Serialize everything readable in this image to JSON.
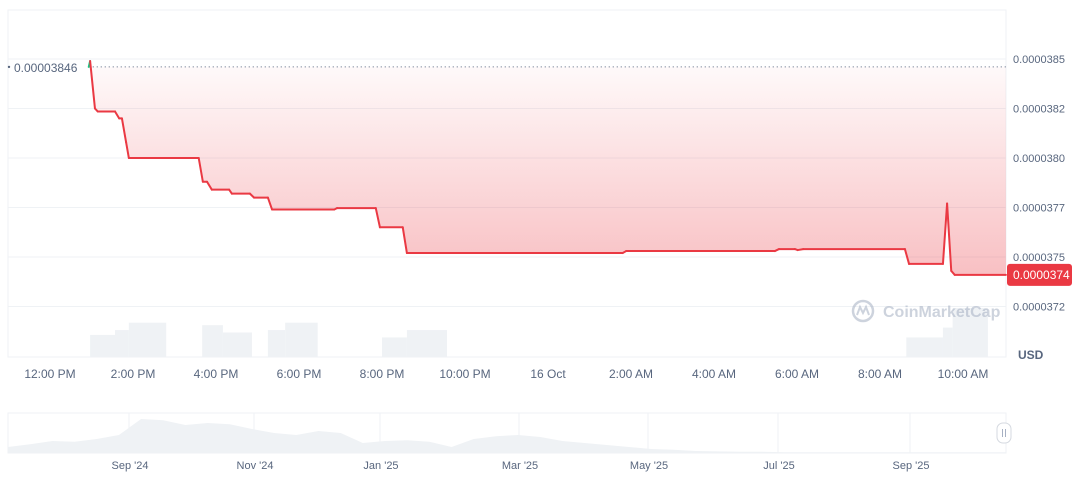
{
  "chart_data": {
    "type": "line",
    "currency_label": "USD",
    "watermark": "CoinMarketCap",
    "colors": {
      "up": "#16c784",
      "down": "#ea3943",
      "grid": "#eff2f5",
      "text": "#58667e",
      "volume": "#eff2f5"
    },
    "grid": true,
    "start_price_label": "0.00003846",
    "start_price": 3.846e-05,
    "last_price_label": "0.0000374",
    "last_price": 3.741e-05,
    "y_ticks": [
      {
        "value": 3.85e-05,
        "label": "0.0000385"
      },
      {
        "value": 3.825e-05,
        "label": "0.0000382"
      },
      {
        "value": 3.8e-05,
        "label": "0.0000380"
      },
      {
        "value": 3.775e-05,
        "label": "0.0000377"
      },
      {
        "value": 3.75e-05,
        "label": "0.0000375"
      },
      {
        "value": 3.725e-05,
        "label": "0.0000372"
      }
    ],
    "x_ticks": [
      {
        "time": "15 12:00",
        "label": "12:00 PM"
      },
      {
        "time": "15 14:00",
        "label": "2:00 PM"
      },
      {
        "time": "15 16:00",
        "label": "4:00 PM"
      },
      {
        "time": "15 18:00",
        "label": "6:00 PM"
      },
      {
        "time": "15 20:00",
        "label": "8:00 PM"
      },
      {
        "time": "15 22:00",
        "label": "10:00 PM"
      },
      {
        "time": "16 00:00",
        "label": "16 Oct"
      },
      {
        "time": "16 02:00",
        "label": "2:00 AM"
      },
      {
        "time": "16 04:00",
        "label": "4:00 AM"
      },
      {
        "time": "16 06:00",
        "label": "6:00 AM"
      },
      {
        "time": "16 08:00",
        "label": "8:00 AM"
      },
      {
        "time": "16 10:00",
        "label": "10:00 AM"
      }
    ],
    "series": [
      {
        "points": [
          [
            "15 12:56",
            3.846e-05
          ],
          [
            "15 12:58",
            3.849e-05
          ],
          [
            "15 13:05",
            3.825e-05
          ],
          [
            "15 13:09",
            3.8235e-05
          ],
          [
            "15 13:34",
            3.8235e-05
          ],
          [
            "15 13:40",
            3.82e-05
          ],
          [
            "15 13:44",
            3.82e-05
          ],
          [
            "15 13:50",
            3.808e-05
          ],
          [
            "15 13:54",
            3.8e-05
          ],
          [
            "15 15:35",
            3.8e-05
          ],
          [
            "15 15:41",
            3.788e-05
          ],
          [
            "15 15:47",
            3.788e-05
          ],
          [
            "15 15:54",
            3.784e-05
          ],
          [
            "15 16:19",
            3.784e-05
          ],
          [
            "15 16:23",
            3.782e-05
          ],
          [
            "15 16:49",
            3.782e-05
          ],
          [
            "15 16:55",
            3.78e-05
          ],
          [
            "15 17:15",
            3.78e-05
          ],
          [
            "15 17:21",
            3.774e-05
          ],
          [
            "15 18:51",
            3.774e-05
          ],
          [
            "15 18:55",
            3.7747e-05
          ],
          [
            "15 19:51",
            3.7747e-05
          ],
          [
            "15 19:57",
            3.765e-05
          ],
          [
            "15 20:30",
            3.765e-05
          ],
          [
            "15 20:36",
            3.752e-05
          ],
          [
            "16 01:48",
            3.752e-05
          ],
          [
            "16 01:53",
            3.753e-05
          ],
          [
            "16 05:28",
            3.753e-05
          ],
          [
            "16 05:34",
            3.754e-05
          ],
          [
            "16 05:57",
            3.754e-05
          ],
          [
            "16 06:01",
            3.7535e-05
          ],
          [
            "16 06:09",
            3.754e-05
          ],
          [
            "16 08:36",
            3.754e-05
          ],
          [
            "16 08:42",
            3.7465e-05
          ],
          [
            "16 09:31",
            3.7465e-05
          ],
          [
            "16 09:37",
            3.777e-05
          ],
          [
            "16 09:43",
            3.743e-05
          ],
          [
            "16 09:48",
            3.741e-05
          ],
          [
            "16 11:02",
            3.741e-05
          ]
        ]
      }
    ],
    "volume": [
      [
        "15 12:58",
        "15 13:34",
        0.45
      ],
      [
        "15 13:34",
        "15 13:54",
        0.55
      ],
      [
        "15 13:54",
        "15 14:48",
        0.7
      ],
      [
        "15 15:40",
        "15 16:10",
        0.65
      ],
      [
        "15 16:10",
        "15 16:52",
        0.5
      ],
      [
        "15 17:15",
        "15 17:40",
        0.55
      ],
      [
        "15 17:40",
        "15 18:27",
        0.7
      ],
      [
        "15 20:00",
        "15 20:36",
        0.4
      ],
      [
        "15 20:36",
        "15 21:34",
        0.55
      ],
      [
        "16 08:38",
        "16 09:31",
        0.4
      ],
      [
        "16 09:31",
        "16 09:45",
        0.6
      ],
      [
        "16 09:45",
        "16 10:36",
        1.0
      ]
    ],
    "navigator": {
      "x_ticks": [
        "Sep '24",
        "Nov '24",
        "Jan '25",
        "Mar '25",
        "May '25",
        "Jul '25",
        "Sep '25"
      ],
      "values": [
        0.15,
        0.22,
        0.3,
        0.28,
        0.35,
        0.45,
        0.85,
        0.82,
        0.7,
        0.75,
        0.72,
        0.6,
        0.5,
        0.45,
        0.55,
        0.5,
        0.25,
        0.3,
        0.32,
        0.28,
        0.15,
        0.35,
        0.42,
        0.45,
        0.4,
        0.3,
        0.25,
        0.2,
        0.15,
        0.1,
        0.08,
        0.05,
        0.04,
        0.03,
        0.03,
        0.02,
        0.02,
        0.02,
        0.02,
        0.02,
        0.02,
        0.02,
        0.02,
        0.02,
        0.02,
        0.02
      ]
    }
  }
}
